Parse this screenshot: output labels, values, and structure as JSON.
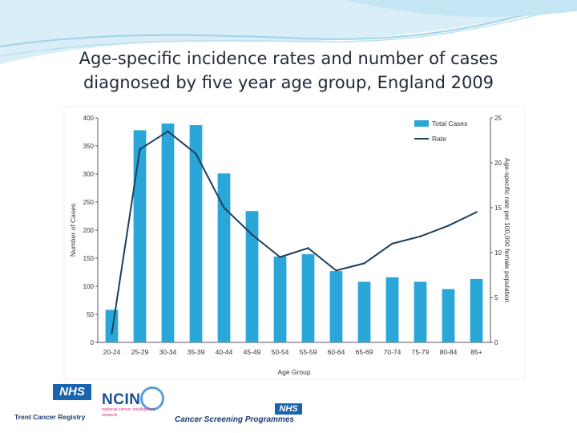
{
  "header": {
    "title_line1": "Age-specific incidence rates and number of cases",
    "title_line2": "diagnosed by five year age group, England 2009"
  },
  "colors": {
    "bar": "#2aa6d9",
    "line": "#1e3f5a",
    "banner_light": "#d9eef7",
    "banner_dark": "#9fd3ea"
  },
  "chart_data": {
    "type": "bar",
    "categories": [
      "20-24",
      "25-29",
      "30-34",
      "35-39",
      "40-44",
      "45-49",
      "50-54",
      "55-59",
      "60-64",
      "65-69",
      "70-74",
      "75-79",
      "80-84",
      "85+"
    ],
    "series": [
      {
        "name": "Total Cases",
        "type": "bar",
        "axis": "left",
        "values": [
          58,
          378,
          390,
          387,
          301,
          234,
          153,
          157,
          127,
          108,
          116,
          108,
          95,
          113
        ]
      },
      {
        "name": "Rate",
        "type": "line",
        "axis": "right",
        "values": [
          1.0,
          21.5,
          23.5,
          21.0,
          15.0,
          12.0,
          9.5,
          10.5,
          8.0,
          8.8,
          11.0,
          11.8,
          13.0,
          14.5
        ]
      }
    ],
    "xlabel": "Age Group",
    "ylabel": "Number of Cases",
    "y2label": "Age-specific rate per 100,000 female population",
    "ylim": [
      0,
      400
    ],
    "y2lim": [
      0,
      25
    ],
    "yticks": [
      "0",
      "50",
      "100",
      "150",
      "200",
      "250",
      "300",
      "350",
      "400"
    ],
    "y2ticks": [
      "0",
      "5",
      "10",
      "15",
      "20",
      "25"
    ],
    "legend_position": "top-right",
    "grid": false
  },
  "logos": {
    "nhs": "NHS",
    "trent": "Trent Cancer Registry",
    "ncin": "NCIN",
    "ncin_sub": "national cancer intelligence network",
    "nhs2": "NHS",
    "csp": "Cancer Screening Programmes"
  }
}
